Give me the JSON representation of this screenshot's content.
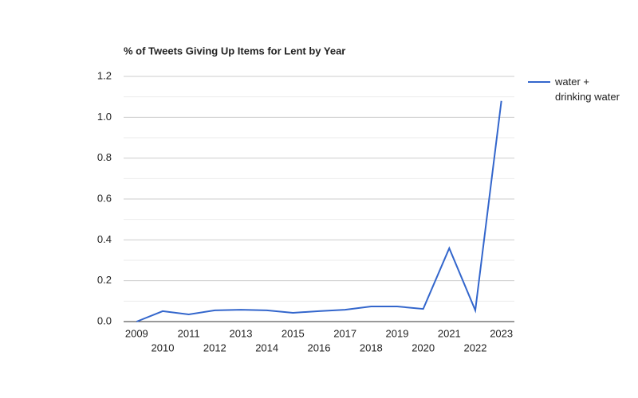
{
  "chart_data": {
    "type": "line",
    "title": "% of Tweets Giving Up Items for Lent by Year",
    "categories": [
      "2009",
      "2010",
      "2011",
      "2012",
      "2013",
      "2014",
      "2015",
      "2016",
      "2017",
      "2018",
      "2019",
      "2020",
      "2021",
      "2022",
      "2023"
    ],
    "series": [
      {
        "name": "water + drinking water",
        "color": "#3366cc",
        "values": [
          0.0,
          0.051,
          0.035,
          0.055,
          0.058,
          0.055,
          0.043,
          0.051,
          0.058,
          0.074,
          0.074,
          0.062,
          0.359,
          0.055,
          1.08
        ]
      }
    ],
    "ylim": [
      0,
      1.2
    ],
    "yticks": [
      {
        "value": 0,
        "label": "0.0"
      },
      0.2,
      0.4,
      0.6,
      0.8,
      {
        "value": 1,
        "label": "1.0"
      },
      1.2
    ],
    "grid": true,
    "minor_grid": true,
    "legend": "right"
  }
}
